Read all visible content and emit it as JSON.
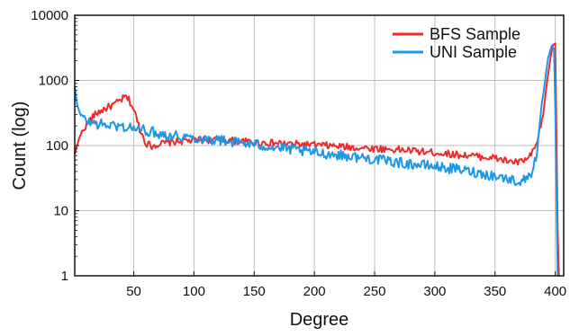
{
  "chart_data": {
    "type": "line",
    "xlabel": "Degree",
    "ylabel": "Count (log)",
    "xlim": [
      1,
      407
    ],
    "ylim": [
      1,
      10000
    ],
    "yscale": "log",
    "grid": true,
    "legend_position": "top-right",
    "x_ticks": [
      50,
      100,
      150,
      200,
      250,
      300,
      350,
      400
    ],
    "x_tick_labels": [
      "50",
      "100",
      "150",
      "200",
      "250",
      "300",
      "350",
      "400"
    ],
    "y_ticks": [
      1,
      10,
      100,
      1000,
      10000
    ],
    "y_tick_labels": [
      "1",
      "10",
      "100",
      "1000",
      "10000"
    ],
    "series": [
      {
        "name": "BFS Sample",
        "color": "#ee2a2a",
        "x": [
          1,
          5,
          10,
          15,
          20,
          25,
          30,
          35,
          40,
          43,
          46,
          50,
          55,
          60,
          65,
          70,
          80,
          90,
          100,
          110,
          120,
          130,
          140,
          150,
          160,
          170,
          180,
          190,
          200,
          210,
          220,
          230,
          240,
          250,
          260,
          270,
          280,
          290,
          300,
          310,
          320,
          330,
          340,
          350,
          360,
          370,
          375,
          380,
          385,
          390,
          393,
          396,
          398,
          400,
          402,
          403
        ],
        "y": [
          75,
          135,
          200,
          265,
          320,
          360,
          395,
          440,
          510,
          560,
          500,
          360,
          180,
          110,
          98,
          105,
          112,
          118,
          120,
          122,
          122,
          120,
          115,
          112,
          110,
          108,
          106,
          104,
          102,
          100,
          97,
          94,
          92,
          90,
          88,
          86,
          84,
          80,
          78,
          75,
          72,
          70,
          67,
          64,
          58,
          55,
          60,
          70,
          110,
          300,
          900,
          2200,
          3500,
          3700,
          5,
          1
        ]
      },
      {
        "name": "UNI Sample",
        "color": "#1d97e6",
        "x": [
          1,
          3,
          6,
          10,
          15,
          20,
          30,
          40,
          50,
          60,
          70,
          80,
          90,
          100,
          110,
          120,
          130,
          140,
          150,
          160,
          170,
          180,
          190,
          200,
          210,
          220,
          230,
          240,
          250,
          260,
          270,
          280,
          290,
          300,
          310,
          320,
          330,
          340,
          350,
          360,
          370,
          375,
          380,
          385,
          390,
          394,
          397,
          399,
          400,
          401,
          402
        ],
        "y": [
          800,
          420,
          290,
          240,
          225,
          215,
          205,
          195,
          185,
          170,
          155,
          145,
          138,
          132,
          128,
          122,
          116,
          110,
          104,
          98,
          92,
          87,
          82,
          78,
          75,
          72,
          68,
          65,
          62,
          58,
          55,
          52,
          50,
          48,
          45,
          43,
          40,
          37,
          34,
          31,
          28,
          30,
          38,
          80,
          600,
          2200,
          3400,
          3000,
          400,
          20,
          1
        ]
      }
    ]
  }
}
